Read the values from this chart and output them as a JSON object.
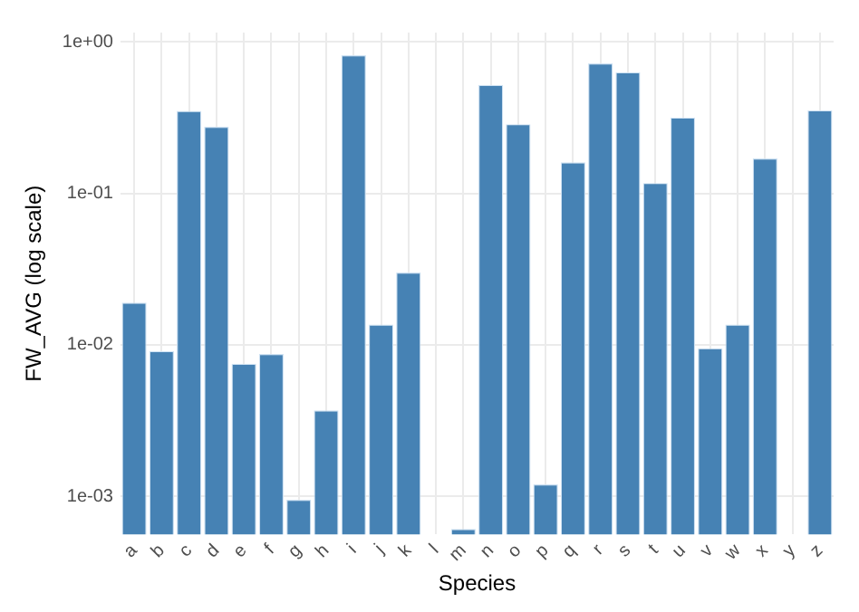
{
  "chart_data": {
    "type": "bar",
    "xlabel": "Species",
    "ylabel": "FW_AVG (log scale)",
    "categories": [
      "a",
      "b",
      "c",
      "d",
      "e",
      "f",
      "g",
      "h",
      "i",
      "j",
      "k",
      "l",
      "m",
      "n",
      "o",
      "p",
      "q",
      "r",
      "s",
      "t",
      "u",
      "v",
      "w",
      "x",
      "y",
      "z"
    ],
    "values": [
      0.019,
      0.0091,
      0.35,
      0.275,
      0.0075,
      0.0087,
      0.00095,
      0.0037,
      0.815,
      0.0136,
      0.03,
      null,
      0.00061,
      0.52,
      0.286,
      0.0012,
      0.16,
      0.72,
      0.63,
      0.117,
      0.316,
      0.0095,
      0.0136,
      0.17,
      null,
      0.353
    ],
    "color": "#4682b4",
    "log": true,
    "ylim": [
      0.00056,
      1.15
    ],
    "yticks": [
      {
        "value": 0.001,
        "label": "1e-03"
      },
      {
        "value": 0.01,
        "label": "1e-02"
      },
      {
        "value": 0.1,
        "label": "1e-01"
      },
      {
        "value": 1,
        "label": "1e+00"
      }
    ],
    "grid": true
  }
}
